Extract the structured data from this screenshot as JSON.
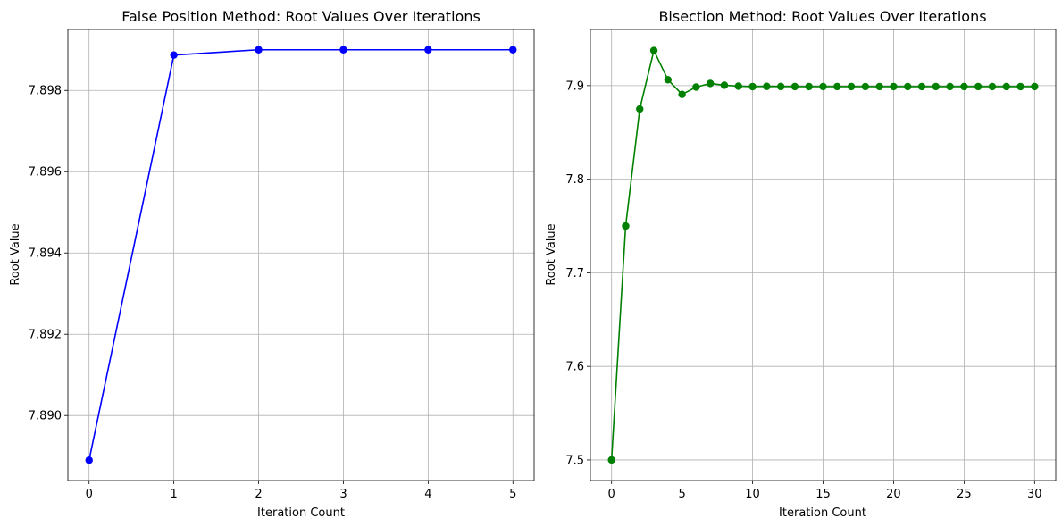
{
  "chart_data": [
    {
      "type": "line",
      "title": "False Position Method: Root Values Over Iterations",
      "xlabel": "Iteration Count",
      "ylabel": "Root Value",
      "xlim": [
        -0.25,
        5.25
      ],
      "ylim": [
        7.8884,
        7.8995
      ],
      "xticks": [
        "0",
        "1",
        "2",
        "3",
        "4",
        "5"
      ],
      "yticks": [
        "7.890",
        "7.892",
        "7.894",
        "7.896",
        "7.898"
      ],
      "grid": true,
      "marker": "circle",
      "color": "#0000ff",
      "series": [
        {
          "x": [
            0,
            1,
            2,
            3,
            4,
            5
          ],
          "y": [
            7.8889,
            7.89887,
            7.899,
            7.899,
            7.899,
            7.899
          ]
        }
      ]
    },
    {
      "type": "line",
      "title": "Bisection Method: Root Values Over Iterations",
      "xlabel": "Iteration Count",
      "ylabel": "Root Value",
      "xlim": [
        -1.5,
        31.5
      ],
      "ylim": [
        7.478,
        7.96
      ],
      "xticks": [
        "0",
        "5",
        "10",
        "15",
        "20",
        "25",
        "30"
      ],
      "yticks": [
        "7.5",
        "7.6",
        "7.7",
        "7.8",
        "7.9"
      ],
      "grid": true,
      "marker": "circle",
      "color": "#008000",
      "series": [
        {
          "x": [
            0,
            1,
            2,
            3,
            4,
            5,
            6,
            7,
            8,
            9,
            10,
            11,
            12,
            13,
            14,
            15,
            16,
            17,
            18,
            19,
            20,
            21,
            22,
            23,
            24,
            25,
            26,
            27,
            28,
            29,
            30
          ],
          "y": [
            7.5,
            7.75,
            7.875,
            7.9375,
            7.90625,
            7.890625,
            7.8984375,
            7.90234375,
            7.900390625,
            7.8994140625,
            7.89892578125,
            7.899169921875,
            7.8990478515625,
            7.8989868164062,
            7.8990173339844,
            7.8990020751953,
            7.8990097045898,
            7.8990058898926,
            7.899003982544,
            7.8990030288696,
            7.8990025520325,
            7.8990027904511,
            7.8990026712418,
            7.8990027308464,
            7.8990027010441,
            7.8990026861429,
            7.8990026935935,
            7.8990026898682,
            7.8990026917309,
            7.8990026907995,
            7.8990026912652
          ]
        }
      ]
    }
  ]
}
